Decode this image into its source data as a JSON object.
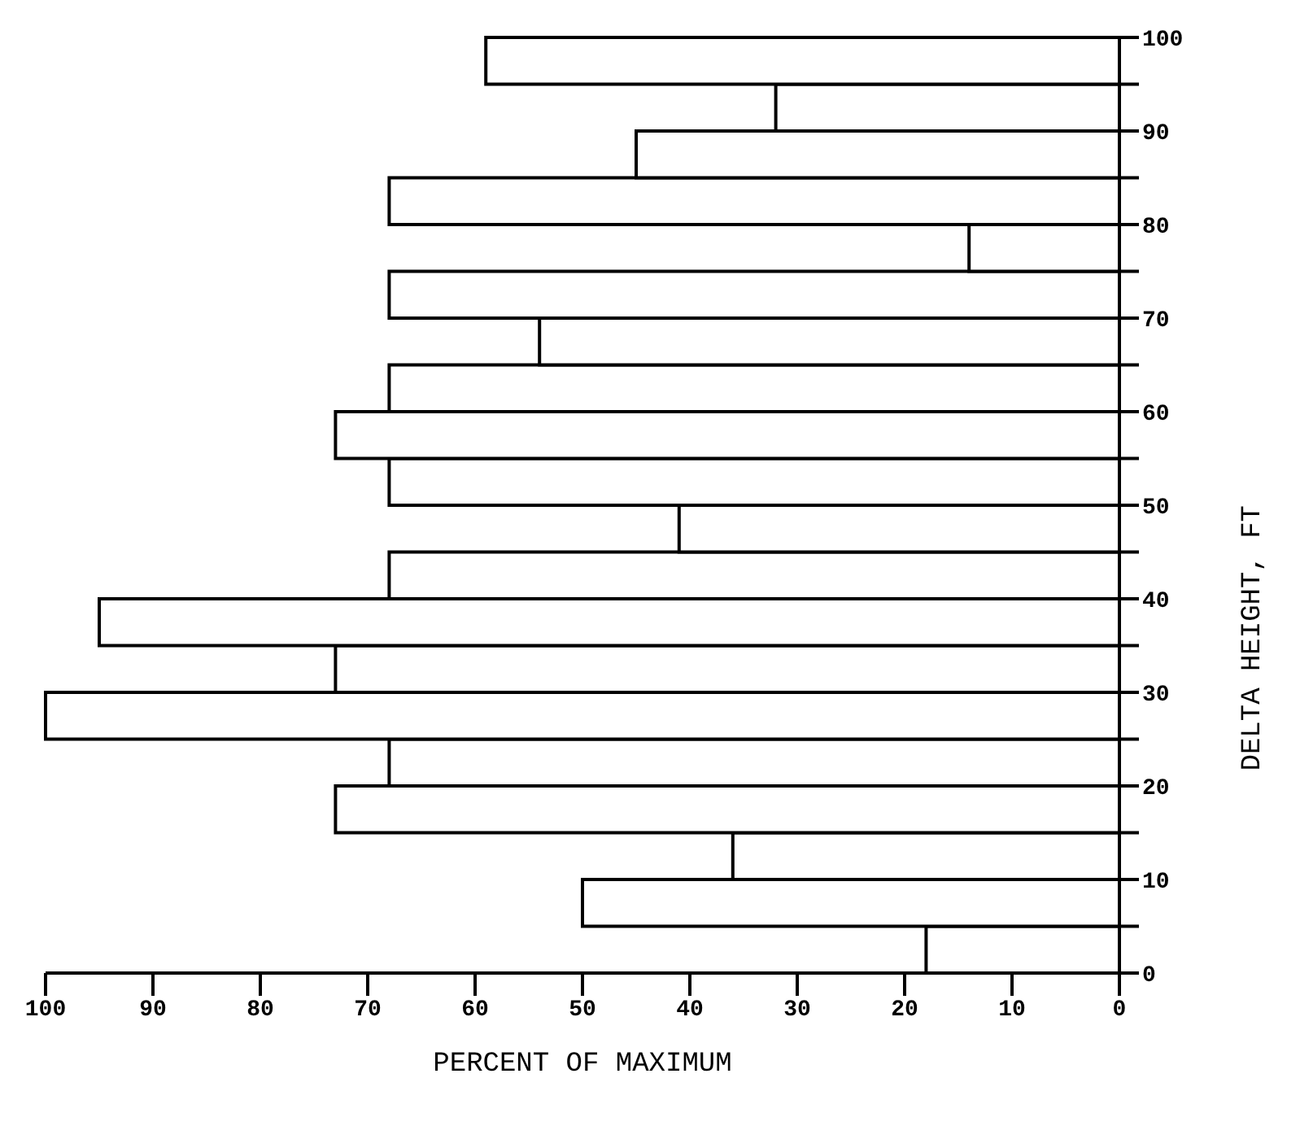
{
  "chart_data": {
    "type": "histogram",
    "orientation": "horizontal",
    "xlabel": "PERCENT OF MAXIMUM",
    "ylabel": "DELTA HEIGHT, FT",
    "bins": [
      0,
      5,
      10,
      15,
      20,
      25,
      30,
      35,
      40,
      45,
      50,
      55,
      60,
      65,
      70,
      75,
      80,
      85,
      90,
      95,
      100
    ],
    "values": [
      18,
      50,
      36,
      73,
      68,
      100,
      73,
      95,
      68,
      41,
      68,
      73,
      68,
      54,
      68,
      14,
      68,
      45,
      32,
      59
    ],
    "color": "#000000",
    "xlim": [
      100,
      0
    ],
    "xticks": [
      100,
      90,
      80,
      70,
      60,
      50,
      40,
      30,
      20,
      10,
      0
    ],
    "ylim": [
      0,
      100
    ],
    "yticks": [
      0,
      {
        "value": 5,
        "label": null
      },
      10,
      {
        "value": 15,
        "label": null
      },
      20,
      {
        "value": 25,
        "label": null
      },
      30,
      {
        "value": 35,
        "label": null
      },
      40,
      {
        "value": 45,
        "label": null
      },
      50,
      {
        "value": 55,
        "label": null
      },
      60,
      {
        "value": 65,
        "label": null
      },
      70,
      {
        "value": 75,
        "label": null
      },
      80,
      {
        "value": 85,
        "label": null
      },
      90,
      {
        "value": 95,
        "label": null
      },
      100
    ]
  }
}
